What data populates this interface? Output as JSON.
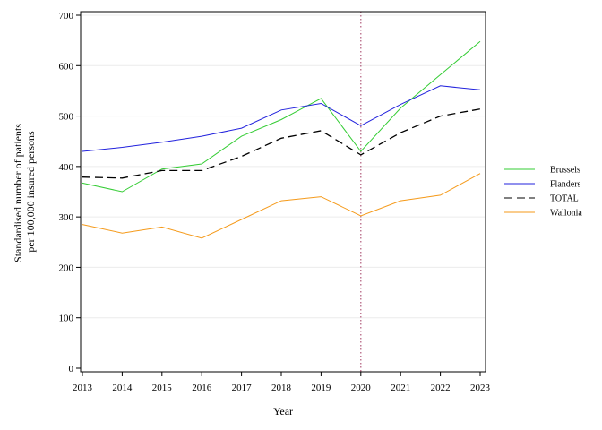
{
  "chart_data": {
    "type": "line",
    "xlabel": "Year",
    "ylabel_lines": [
      "Standardised number of patients",
      "per 100,000 insured persons"
    ],
    "x": [
      2013,
      2014,
      2015,
      2016,
      2017,
      2018,
      2019,
      2020,
      2021,
      2022,
      2023
    ],
    "xlim": [
      2013,
      2023
    ],
    "ylim": [
      0,
      700
    ],
    "yticks": [
      0,
      100,
      200,
      300,
      400,
      500,
      600,
      700
    ],
    "grid": "horizontal",
    "reference_line_x": 2020,
    "legend_position": "right",
    "series": [
      {
        "name": "Brussels",
        "color": "#33cc33",
        "dash": "solid",
        "values": [
          367,
          350,
          395,
          405,
          460,
          493,
          535,
          430,
          516,
          582,
          648
        ]
      },
      {
        "name": "Flanders",
        "color": "#2222dd",
        "dash": "solid",
        "values": [
          430,
          438,
          448,
          460,
          476,
          512,
          525,
          481,
          523,
          560,
          552
        ]
      },
      {
        "name": "TOTAL",
        "color": "#000000",
        "dash": "dashed",
        "values": [
          379,
          377,
          392,
          392,
          420,
          456,
          471,
          423,
          467,
          500,
          514
        ]
      },
      {
        "name": "Wallonia",
        "color": "#f59a1a",
        "dash": "solid",
        "values": [
          285,
          268,
          280,
          258,
          295,
          332,
          340,
          302,
          332,
          343,
          386
        ]
      }
    ]
  }
}
